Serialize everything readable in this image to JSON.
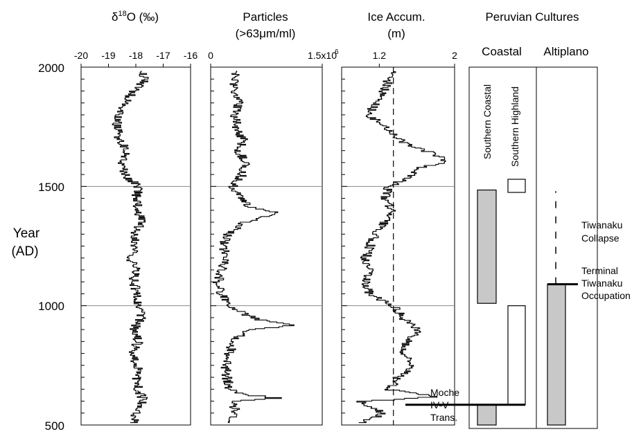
{
  "chart_data": {
    "type": "line",
    "y_axis": {
      "label_line1": "Year",
      "label_line2": "(AD)",
      "range": [
        500,
        2000
      ],
      "ticks": [
        2000,
        1500,
        1000,
        500
      ],
      "tick_labels": [
        "2000",
        "1500",
        "1000",
        "500"
      ],
      "reference_lines": [
        1500,
        1000
      ]
    },
    "panels": [
      {
        "id": "d18o",
        "title_prefix": "δ",
        "title_sup": "18",
        "title_suffix": "O (‰)",
        "xlim": [
          -20,
          -16
        ],
        "ticks": [
          -20,
          -19,
          -18,
          -17,
          -16
        ],
        "tick_labels": [
          "-20",
          "-19",
          "-18",
          "-17",
          "-16"
        ],
        "series": {
          "years": [
            510,
            550,
            600,
            650,
            700,
            750,
            800,
            850,
            900,
            950,
            1000,
            1050,
            1100,
            1150,
            1200,
            1250,
            1300,
            1350,
            1400,
            1450,
            1500,
            1550,
            1600,
            1650,
            1700,
            1750,
            1800,
            1850,
            1900,
            1950,
            1985
          ],
          "values": [
            -18.1,
            -18.0,
            -17.7,
            -17.9,
            -18.0,
            -17.9,
            -18.2,
            -17.9,
            -18.1,
            -17.8,
            -17.9,
            -17.9,
            -18.1,
            -18.0,
            -18.2,
            -18.0,
            -18.1,
            -17.8,
            -17.9,
            -18.0,
            -17.9,
            -18.4,
            -18.5,
            -18.3,
            -18.6,
            -18.7,
            -18.6,
            -18.4,
            -18.1,
            -17.6,
            -17.8
          ]
        }
      },
      {
        "id": "particles",
        "title_line1": "Particles",
        "title_line2": "(>63μm/ml)",
        "xlim": [
          0,
          1500000
        ],
        "ticks": [
          0,
          1500000
        ],
        "tick_labels": [
          "0",
          "1.5x10"
        ],
        "tick_label_sup": "6",
        "series": {
          "years": [
            510,
            550,
            600,
            615,
            630,
            650,
            700,
            750,
            800,
            850,
            900,
            920,
            940,
            960,
            1000,
            1050,
            1100,
            1150,
            1200,
            1250,
            1300,
            1350,
            1390,
            1420,
            1450,
            1500,
            1550,
            1600,
            1650,
            1700,
            1750,
            1800,
            1850,
            1900,
            1950,
            1985
          ],
          "values": [
            250000,
            350000,
            300000,
            900000,
            450000,
            250000,
            220000,
            200000,
            250000,
            300000,
            500000,
            1100000,
            700000,
            500000,
            250000,
            150000,
            100000,
            150000,
            200000,
            180000,
            220000,
            450000,
            900000,
            500000,
            400000,
            300000,
            420000,
            480000,
            380000,
            430000,
            350000,
            320000,
            380000,
            300000,
            330000,
            350000
          ]
        }
      },
      {
        "id": "ice",
        "title_line1": "Ice Accum.",
        "title_line2": "(m)",
        "xlim": [
          0.8,
          2.0
        ],
        "ticks": [
          1.2,
          2.0
        ],
        "tick_labels": [
          "1.2",
          "2"
        ],
        "dashed_reference": 1.35,
        "series": {
          "years": [
            510,
            550,
            600,
            620,
            650,
            700,
            750,
            800,
            850,
            900,
            950,
            1000,
            1050,
            1100,
            1150,
            1200,
            1250,
            1300,
            1350,
            1400,
            1450,
            1500,
            1550,
            1580,
            1600,
            1620,
            1650,
            1680,
            1700,
            1750,
            1800,
            1850,
            1900,
            1950,
            1985
          ],
          "values": [
            1.0,
            1.25,
            1.0,
            1.8,
            1.3,
            1.4,
            1.55,
            1.45,
            1.5,
            1.6,
            1.45,
            1.35,
            1.1,
            1.05,
            1.1,
            1.05,
            1.1,
            1.15,
            1.25,
            1.35,
            1.25,
            1.3,
            1.55,
            1.65,
            1.85,
            1.9,
            1.7,
            1.5,
            1.4,
            1.25,
            1.1,
            1.15,
            1.25,
            1.3,
            1.35
          ]
        }
      }
    ],
    "cultures": {
      "title": "Peruvian Cultures",
      "group1_label": "Coastal",
      "group2_label": "Altiplano",
      "southern_coastal_label": "Southern Coastal",
      "southern_highland_label": "Southern Highland",
      "bars": [
        {
          "id": "southern-coastal-upper",
          "column": "coastal",
          "start": 1010,
          "end": 1485,
          "fill": "#c8c8c8"
        },
        {
          "id": "southern-coastal-lower",
          "column": "coastal",
          "start": 500,
          "end": 585,
          "fill": "#c8c8c8"
        },
        {
          "id": "southern-highland-small",
          "column": "highland",
          "start": 1475,
          "end": 1530,
          "fill": "#ffffff"
        },
        {
          "id": "southern-highland-main",
          "column": "highland",
          "start": 585,
          "end": 1000,
          "fill": "#ffffff"
        },
        {
          "id": "tiwanaku",
          "column": "altiplano",
          "start": 500,
          "end": 1090,
          "fill": "#c8c8c8"
        }
      ],
      "tiwanaku_dashed": {
        "start": 1090,
        "end": 1480
      },
      "events": [
        {
          "id": "moche",
          "year": 585,
          "lines": [
            "Moche",
            "IV-V",
            "Trans."
          ]
        },
        {
          "id": "terminal-tiwanaku",
          "year": 1090,
          "lines": [
            "Terminal",
            "Tiwanaku",
            "Occupation"
          ]
        }
      ],
      "collapse_label": [
        "Tiwanaku",
        "Collapse"
      ]
    }
  }
}
